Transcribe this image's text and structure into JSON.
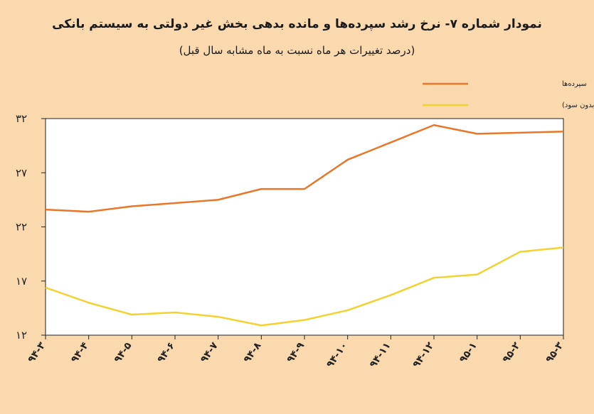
{
  "title": "نمودار شماره ۷- نرخ رشد سپرده‌ها و مانده بدهی بخش غیر دولتی به سیستم بانکی",
  "subtitle": "(درصد تغییرات هر ماه نسبت به ماه مشابه سال قبل)",
  "colors": {
    "background": "#fbd9ae",
    "plot_area": "#ffffff",
    "deposits": "#e8772a",
    "debt": "#f2d230"
  },
  "chart_data": {
    "type": "line",
    "categories": [
      "۹۴-۳",
      "۹۴-۴",
      "۹۴-۵",
      "۹۴-۶",
      "۹۴-۷",
      "۹۴-۸",
      "۹۴-۹",
      "۹۴-۱۰",
      "۹۴-۱۱",
      "۹۴-۱۲",
      "۹۵-۱",
      "۹۵-۲",
      "۹۵-۳"
    ],
    "y_tick_labels": [
      "۳۲",
      "۲۷",
      "۲۲",
      "۱۷",
      "۱۲"
    ],
    "y_ticks": [
      32,
      27,
      22,
      17,
      12
    ],
    "ylim": [
      12,
      32
    ],
    "grid": false,
    "legend_position": "top-right",
    "series": [
      {
        "name": "سپرده‌ها",
        "color": "#e8772a",
        "values": [
          23.6,
          23.4,
          23.9,
          24.2,
          24.5,
          25.5,
          25.5,
          28.2,
          29.8,
          31.4,
          30.6,
          30.7,
          30.8
        ]
      },
      {
        "name": "بدهی بخش غیر دولتی(بدون سود)",
        "color": "#f2d230",
        "values": [
          16.4,
          15.0,
          13.9,
          14.1,
          13.7,
          12.9,
          13.4,
          14.3,
          15.7,
          17.3,
          17.6,
          19.7,
          20.1
        ]
      }
    ]
  }
}
